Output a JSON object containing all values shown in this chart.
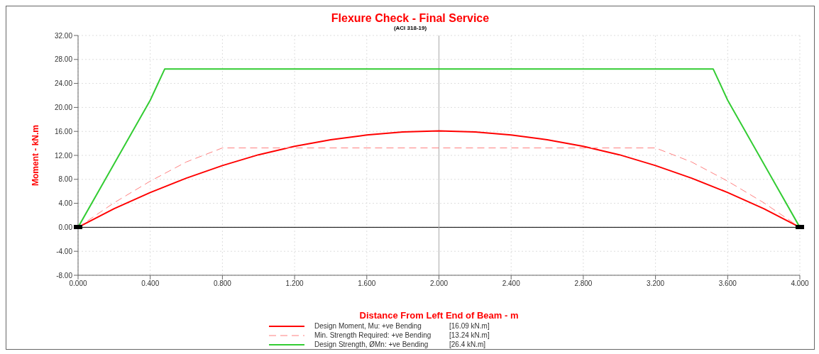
{
  "chart_data": {
    "type": "line",
    "title": "Flexure Check - Final Service",
    "subtitle": "(ACI 318-19)",
    "xlabel": "Distance From Left End of Beam - m",
    "ylabel": "Moment -  kN.m",
    "xlim": [
      0,
      4
    ],
    "xticks": [
      {
        "value": 0,
        "label": "0.000"
      },
      {
        "value": 0.4,
        "label": "0.400"
      },
      {
        "value": 0.8,
        "label": "0.800"
      },
      {
        "value": 1.2,
        "label": "1.200"
      },
      {
        "value": 1.6,
        "label": "1.600"
      },
      {
        "value": 2,
        "label": "2.000"
      },
      {
        "value": 2.4,
        "label": "2.400"
      },
      {
        "value": 2.8,
        "label": "2.800"
      },
      {
        "value": 3.2,
        "label": "3.200"
      },
      {
        "value": 3.6,
        "label": "3.600"
      },
      {
        "value": 4,
        "label": "4.000"
      }
    ],
    "ylim": [
      -8,
      32
    ],
    "yticks": [
      {
        "value": -8,
        "label": "-8.00"
      },
      {
        "value": -4,
        "label": "-4.00"
      },
      {
        "value": 0,
        "label": "0.00"
      },
      {
        "value": 4,
        "label": "4.00"
      },
      {
        "value": 8,
        "label": "8.00"
      },
      {
        "value": 12,
        "label": "12.00"
      },
      {
        "value": 16,
        "label": "16.00"
      },
      {
        "value": 20,
        "label": "20.00"
      },
      {
        "value": 24,
        "label": "24.00"
      },
      {
        "value": 28,
        "label": "28.00"
      },
      {
        "value": 32,
        "label": "32.00"
      }
    ],
    "annotations": [
      "[16.09  kN.m]",
      "[13.24  kN.m]",
      "[26.4  kN.m]"
    ],
    "grid": true,
    "legend": "bottom",
    "marker": "none",
    "ref_lines": [
      {
        "axis": "y",
        "value": 0,
        "color": "#000000"
      },
      {
        "axis": "x",
        "value": 2,
        "color": "#aaaaaa"
      }
    ],
    "series": [
      {
        "name": "Design Moment, Mu: +ve Bending",
        "color": "#ff0000",
        "line_style": "solid",
        "x": [
          0,
          0.2,
          0.4,
          0.6,
          0.8,
          1,
          1.2,
          1.4,
          1.6,
          1.8,
          2,
          2.2,
          2.4,
          2.6,
          2.8,
          3,
          3.2,
          3.4,
          3.6,
          3.8,
          4
        ],
        "values": [
          0,
          3.1,
          5.8,
          8.2,
          10.3,
          12.1,
          13.5,
          14.6,
          15.4,
          15.9,
          16.09,
          15.9,
          15.4,
          14.6,
          13.5,
          12.1,
          10.3,
          8.2,
          5.8,
          3.1,
          0
        ]
      },
      {
        "name": "Min. Strength Required: +ve Bending",
        "color": "#ff8080",
        "line_style": "dashed",
        "x": [
          0,
          0.2,
          0.4,
          0.6,
          0.8,
          3.2,
          3.4,
          3.6,
          3.8,
          4
        ],
        "values": [
          0,
          4.1,
          7.7,
          10.9,
          13.24,
          13.24,
          10.9,
          7.7,
          4.1,
          0
        ]
      },
      {
        "name": "Design Strength, ØMn: +ve Bending",
        "color": "#33cc33",
        "line_style": "solid",
        "x": [
          0,
          0.4,
          0.48,
          3.52,
          3.6,
          4
        ],
        "values": [
          0,
          21.2,
          26.4,
          26.4,
          21.2,
          0
        ]
      }
    ]
  }
}
